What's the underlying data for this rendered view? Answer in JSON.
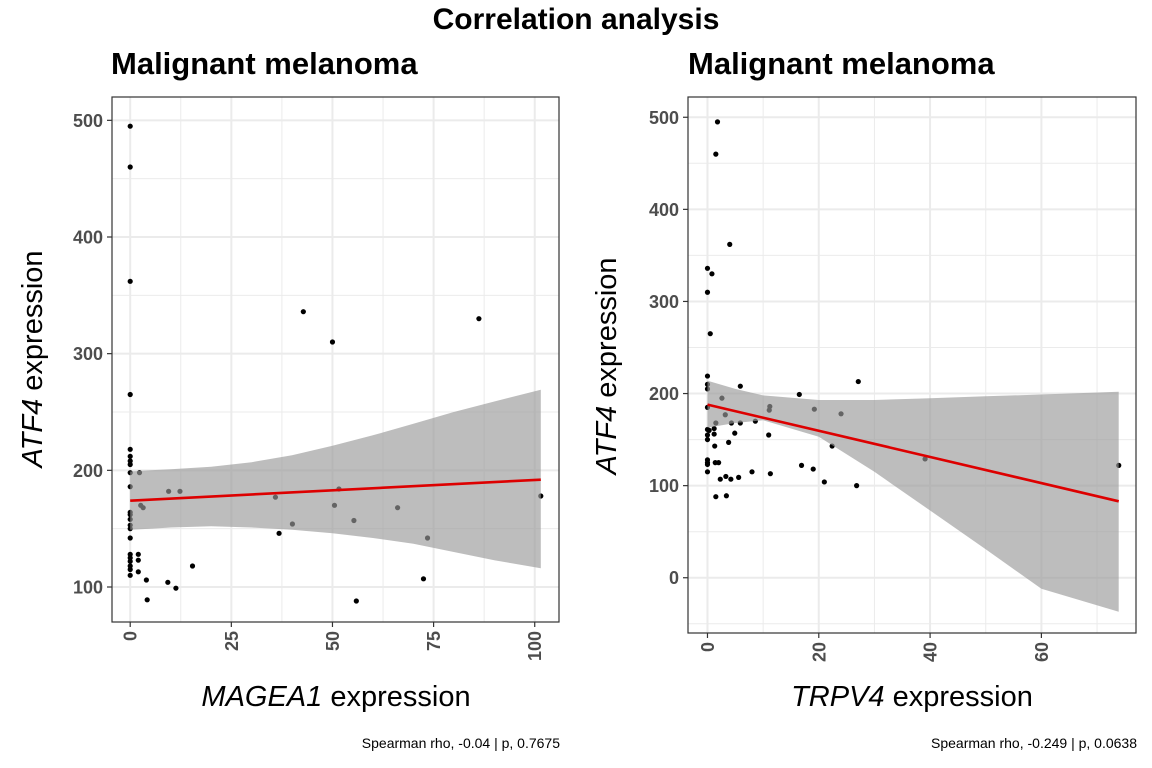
{
  "figure_title": "Correlation analysis",
  "colors": {
    "points": "#000000",
    "fit_line": "#dd0000",
    "ribbon": "#999999",
    "grid": "#ebebeb",
    "frame": "#333333"
  },
  "chart_data": [
    {
      "type": "scatter",
      "title": "Malignant melanoma",
      "xlabel_gene": "MAGEA1",
      "xlabel_suffix": " expression",
      "ylabel_gene": "ATF4",
      "ylabel_suffix": " expression",
      "caption": "Spearman rho, -0.04 | p, 0.7675",
      "xlim": [
        -4.5,
        106
      ],
      "ylim": [
        70,
        520
      ],
      "xticks": [
        0,
        25,
        50,
        75,
        100
      ],
      "yticks": [
        100,
        200,
        300,
        400,
        500
      ],
      "grid": true,
      "points": [
        [
          0,
          495
        ],
        [
          0,
          460
        ],
        [
          0,
          362
        ],
        [
          0,
          265
        ],
        [
          0,
          218
        ],
        [
          0,
          212
        ],
        [
          0,
          208
        ],
        [
          0,
          205
        ],
        [
          0,
          198
        ],
        [
          0,
          186
        ],
        [
          0,
          164
        ],
        [
          0,
          162
        ],
        [
          0,
          158
        ],
        [
          0,
          153
        ],
        [
          0,
          150
        ],
        [
          0,
          142
        ],
        [
          0,
          128
        ],
        [
          0,
          125
        ],
        [
          0,
          122
        ],
        [
          0,
          118
        ],
        [
          0,
          115
        ],
        [
          0,
          110
        ],
        [
          2,
          128
        ],
        [
          2,
          123
        ],
        [
          2,
          113
        ],
        [
          2.3,
          198
        ],
        [
          2.6,
          170
        ],
        [
          3.2,
          168
        ],
        [
          4,
          106
        ],
        [
          4.2,
          89
        ],
        [
          9.3,
          104
        ],
        [
          9.5,
          182
        ],
        [
          11.3,
          99
        ],
        [
          12.3,
          182
        ],
        [
          15.4,
          118
        ],
        [
          35.9,
          177
        ],
        [
          36.8,
          146
        ],
        [
          40.1,
          154
        ],
        [
          42.8,
          336
        ],
        [
          50,
          310
        ],
        [
          50.5,
          170
        ],
        [
          51.6,
          184
        ],
        [
          55.3,
          157
        ],
        [
          55.9,
          88
        ],
        [
          66.1,
          168
        ],
        [
          72.5,
          107
        ],
        [
          73.5,
          142
        ],
        [
          86.2,
          330
        ],
        [
          101.5,
          178
        ]
      ],
      "fit": {
        "x": [
          0,
          101.5
        ],
        "y": [
          174,
          192
        ]
      },
      "ribbon": {
        "x": [
          0,
          5,
          10,
          20,
          30,
          40,
          50,
          60,
          70,
          80,
          90,
          101.5
        ],
        "upper": [
          199,
          200,
          201,
          203,
          207,
          213,
          221,
          230,
          240,
          250,
          259,
          269
        ],
        "lower": [
          149,
          150,
          151,
          152,
          151,
          149,
          146,
          142,
          137,
          130,
          123,
          116
        ]
      }
    },
    {
      "type": "scatter",
      "title": "Malignant melanoma",
      "xlabel_gene": "TRPV4",
      "xlabel_suffix": " expression",
      "ylabel_gene": "ATF4",
      "ylabel_suffix": " expression",
      "caption": "Spearman rho, -0.249 | p, 0.0638",
      "xlim": [
        -3.5,
        77
      ],
      "ylim": [
        -60,
        522
      ],
      "xticks": [
        0,
        20,
        40,
        60
      ],
      "yticks": [
        0,
        100,
        200,
        300,
        400,
        500
      ],
      "grid": true,
      "points": [
        [
          0,
          336
        ],
        [
          0,
          310
        ],
        [
          0,
          219
        ],
        [
          0,
          210
        ],
        [
          0,
          205
        ],
        [
          0,
          185
        ],
        [
          0,
          161
        ],
        [
          0,
          155
        ],
        [
          0,
          150
        ],
        [
          0,
          128
        ],
        [
          0,
          125
        ],
        [
          0,
          123
        ],
        [
          0,
          115
        ],
        [
          0.3,
          160
        ],
        [
          0.5,
          265
        ],
        [
          0.8,
          330
        ],
        [
          1.5,
          460
        ],
        [
          1.8,
          495
        ],
        [
          1.2,
          162
        ],
        [
          1.2,
          156
        ],
        [
          1.3,
          143
        ],
        [
          1.4,
          125
        ],
        [
          1.5,
          168
        ],
        [
          1.5,
          88
        ],
        [
          2,
          125
        ],
        [
          2.3,
          107
        ],
        [
          2.6,
          195
        ],
        [
          3.2,
          177
        ],
        [
          3.3,
          110
        ],
        [
          3.4,
          89
        ],
        [
          3.8,
          147
        ],
        [
          4,
          362
        ],
        [
          4.2,
          107
        ],
        [
          4.3,
          168
        ],
        [
          4.9,
          157
        ],
        [
          5.6,
          109
        ],
        [
          5.9,
          208
        ],
        [
          5.9,
          168
        ],
        [
          8,
          115
        ],
        [
          8.6,
          170
        ],
        [
          11,
          155
        ],
        [
          11.1,
          182
        ],
        [
          11.2,
          186
        ],
        [
          11.3,
          113
        ],
        [
          16.5,
          199
        ],
        [
          16.9,
          122
        ],
        [
          19,
          118
        ],
        [
          19.2,
          183
        ],
        [
          21,
          104
        ],
        [
          22.4,
          143
        ],
        [
          24,
          178
        ],
        [
          26.8,
          100
        ],
        [
          27.1,
          213
        ],
        [
          39.1,
          129
        ],
        [
          73.9,
          122
        ]
      ],
      "fit": {
        "x": [
          0,
          73.9
        ],
        "y": [
          188,
          83
        ]
      },
      "ribbon": {
        "x": [
          0,
          5,
          10,
          20,
          30,
          40,
          50,
          60,
          73.9
        ],
        "upper": [
          214,
          205,
          198,
          193,
          193,
          195,
          197,
          199,
          202
        ],
        "lower": [
          163,
          168,
          171,
          153,
          115,
          73,
          31,
          -12,
          -37
        ]
      }
    }
  ]
}
